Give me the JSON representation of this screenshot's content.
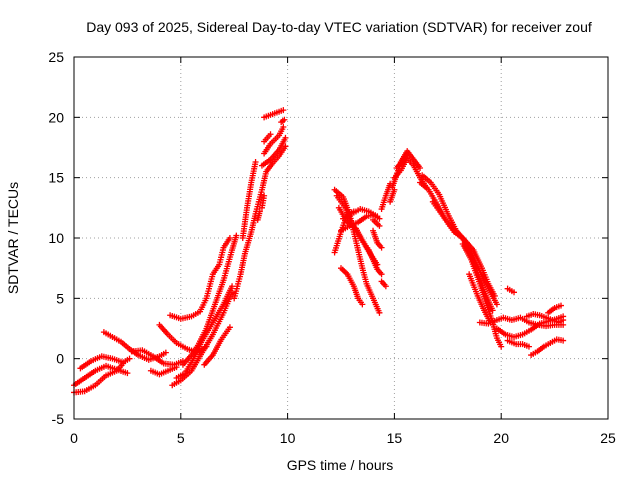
{
  "chart_data": {
    "type": "scatter",
    "title": "Day 093 of 2025, Sidereal Day-to-day VTEC variation (SDTVAR) for receiver zouf",
    "xlabel": "GPS time / hours",
    "ylabel": "SDTVAR / TECUs",
    "xlim": [
      0,
      25
    ],
    "ylim": [
      -5,
      25
    ],
    "xticks": [
      "0",
      "5",
      "10",
      "15",
      "20",
      "25"
    ],
    "yticks": [
      "-5",
      "0",
      "5",
      "10",
      "15",
      "20",
      "25"
    ],
    "grid": true,
    "marker": "+",
    "series": [
      {
        "name": "SDTVAR",
        "color": "#ff0000",
        "tracks": [
          [
            [
              0.0,
              -2.2
            ],
            [
              0.5,
              -1.6
            ],
            [
              1.0,
              -1.0
            ],
            [
              1.5,
              -0.6
            ],
            [
              2.0,
              -0.9
            ],
            [
              2.5,
              -1.2
            ]
          ],
          [
            [
              0.0,
              -2.8
            ],
            [
              0.5,
              -2.7
            ],
            [
              1.0,
              -2.2
            ],
            [
              1.5,
              -1.4
            ],
            [
              2.0,
              -1.0
            ],
            [
              2.3,
              -0.4
            ]
          ],
          [
            [
              0.3,
              -0.8
            ],
            [
              0.8,
              -0.2
            ],
            [
              1.3,
              0.2
            ],
            [
              1.8,
              0.0
            ],
            [
              2.3,
              -0.3
            ],
            [
              2.6,
              0.0
            ]
          ],
          [
            [
              1.4,
              2.2
            ],
            [
              1.8,
              1.8
            ],
            [
              2.2,
              1.4
            ],
            [
              2.6,
              0.8
            ],
            [
              3.0,
              0.3
            ],
            [
              3.5,
              -0.1
            ],
            [
              4.0,
              0.2
            ],
            [
              4.3,
              0.5
            ]
          ],
          [
            [
              2.7,
              0.6
            ],
            [
              3.2,
              0.7
            ],
            [
              3.7,
              0.2
            ],
            [
              4.2,
              -0.4
            ],
            [
              4.7,
              -0.5
            ],
            [
              5.1,
              -0.2
            ]
          ],
          [
            [
              3.6,
              -1.0
            ],
            [
              4.0,
              -1.3
            ],
            [
              4.4,
              -1.0
            ],
            [
              4.8,
              -0.7
            ]
          ],
          [
            [
              4.0,
              2.8
            ],
            [
              4.4,
              2.0
            ],
            [
              4.8,
              1.3
            ],
            [
              5.3,
              0.8
            ],
            [
              5.8,
              0.5
            ],
            [
              6.2,
              1.0
            ]
          ],
          [
            [
              4.5,
              3.6
            ],
            [
              5.0,
              3.3
            ],
            [
              5.5,
              3.5
            ],
            [
              5.9,
              3.9
            ],
            [
              6.2,
              5.0
            ],
            [
              6.5,
              7.0
            ],
            [
              6.8,
              7.8
            ],
            [
              7.0,
              9.2
            ],
            [
              7.3,
              10.0
            ]
          ],
          [
            [
              4.6,
              -2.2
            ],
            [
              5.0,
              -1.8
            ],
            [
              5.5,
              -1.0
            ],
            [
              6.0,
              0.5
            ],
            [
              6.5,
              2.0
            ],
            [
              7.0,
              3.8
            ],
            [
              7.4,
              5.5
            ]
          ],
          [
            [
              4.8,
              -1.6
            ],
            [
              5.2,
              -1.2
            ],
            [
              5.6,
              0.0
            ],
            [
              6.0,
              1.5
            ],
            [
              6.5,
              3.0
            ],
            [
              7.0,
              4.5
            ],
            [
              7.4,
              6.0
            ]
          ],
          [
            [
              5.1,
              -0.5
            ],
            [
              5.5,
              0.3
            ],
            [
              5.8,
              1.1
            ],
            [
              6.2,
              2.5
            ],
            [
              6.6,
              4.5
            ],
            [
              7.0,
              6.5
            ],
            [
              7.4,
              9.0
            ],
            [
              7.6,
              10.2
            ]
          ],
          [
            [
              6.1,
              -0.5
            ],
            [
              6.5,
              0.3
            ],
            [
              6.9,
              1.6
            ],
            [
              7.3,
              2.6
            ]
          ],
          [
            [
              7.5,
              5.0
            ],
            [
              7.8,
              7.0
            ],
            [
              8.0,
              8.7
            ],
            [
              8.3,
              10.5
            ],
            [
              8.5,
              12.0
            ],
            [
              8.8,
              14.0
            ],
            [
              9.0,
              15.5
            ],
            [
              9.3,
              16.2
            ],
            [
              9.6,
              16.8
            ],
            [
              9.9,
              17.6
            ]
          ],
          [
            [
              7.9,
              10.0
            ],
            [
              8.1,
              12.5
            ],
            [
              8.3,
              14.6
            ],
            [
              8.5,
              16.3
            ]
          ],
          [
            [
              8.8,
              16.0
            ],
            [
              9.2,
              16.5
            ],
            [
              9.6,
              17.3
            ],
            [
              9.9,
              18.3
            ]
          ],
          [
            [
              8.9,
              17.0
            ],
            [
              9.2,
              17.8
            ],
            [
              9.6,
              18.5
            ],
            [
              9.8,
              19.2
            ]
          ],
          [
            [
              8.6,
              11.5
            ],
            [
              8.7,
              12.2
            ]
          ],
          [
            [
              8.8,
              12.5
            ],
            [
              8.9,
              13.5
            ]
          ],
          [
            [
              8.9,
              18.0
            ],
            [
              9.2,
              18.6
            ]
          ],
          [
            [
              8.9,
              20.0
            ],
            [
              9.2,
              20.2
            ],
            [
              9.5,
              20.4
            ],
            [
              9.8,
              20.6
            ]
          ],
          [
            [
              9.7,
              19.6
            ],
            [
              9.85,
              19.8
            ]
          ],
          [
            [
              12.2,
              8.8
            ],
            [
              12.5,
              10.5
            ],
            [
              12.8,
              12.0
            ],
            [
              13.1,
              12.2
            ]
          ],
          [
            [
              12.2,
              14.0
            ],
            [
              12.6,
              13.4
            ],
            [
              12.9,
              12.0
            ],
            [
              13.1,
              10.5
            ],
            [
              13.3,
              9.0
            ],
            [
              13.5,
              7.5
            ],
            [
              13.7,
              6.2
            ],
            [
              14.0,
              5.0
            ],
            [
              14.3,
              3.8
            ]
          ],
          [
            [
              12.3,
              13.5
            ],
            [
              12.7,
              12.5
            ],
            [
              13.0,
              11.2
            ],
            [
              13.4,
              10.0
            ],
            [
              13.8,
              9.0
            ],
            [
              14.0,
              8.2
            ],
            [
              14.2,
              7.4
            ],
            [
              14.4,
              7.0
            ]
          ],
          [
            [
              12.4,
              12.5
            ],
            [
              12.8,
              11.3
            ],
            [
              13.2,
              10.8
            ],
            [
              13.6,
              9.5
            ],
            [
              13.9,
              8.6
            ],
            [
              14.2,
              7.8
            ]
          ],
          [
            [
              12.5,
              10.6
            ],
            [
              12.9,
              11.0
            ],
            [
              13.3,
              11.3
            ],
            [
              13.7,
              11.8
            ],
            [
              14.0,
              11.9
            ],
            [
              14.3,
              11.6
            ]
          ],
          [
            [
              12.6,
              11.6
            ],
            [
              13.0,
              12.0
            ],
            [
              13.4,
              12.4
            ],
            [
              13.8,
              12.2
            ],
            [
              14.2,
              11.8
            ]
          ],
          [
            [
              12.5,
              7.5
            ],
            [
              12.8,
              7.0
            ],
            [
              13.1,
              6.0
            ],
            [
              13.3,
              5.0
            ],
            [
              13.5,
              4.5
            ]
          ],
          [
            [
              14.0,
              10.6
            ],
            [
              14.2,
              9.6
            ],
            [
              14.4,
              9.2
            ]
          ],
          [
            [
              14.0,
              11.5
            ],
            [
              14.3,
              11.0
            ]
          ],
          [
            [
              14.4,
              6.4
            ],
            [
              14.6,
              6.0
            ]
          ],
          [
            [
              14.4,
              12.4
            ],
            [
              14.6,
              13.5
            ],
            [
              14.8,
              14.5
            ]
          ],
          [
            [
              14.8,
              13.0
            ],
            [
              15.0,
              14.0
            ]
          ],
          [
            [
              14.9,
              14.2
            ],
            [
              15.1,
              15.2
            ],
            [
              15.3,
              16.3
            ],
            [
              15.6,
              17.2
            ],
            [
              15.9,
              16.5
            ],
            [
              16.2,
              15.8
            ]
          ],
          [
            [
              15.0,
              15.0
            ],
            [
              15.3,
              15.6
            ],
            [
              15.6,
              16.6
            ],
            [
              15.9,
              16.0
            ],
            [
              16.2,
              15.0
            ],
            [
              16.5,
              14.2
            ]
          ],
          [
            [
              15.1,
              15.8
            ],
            [
              15.3,
              16.2
            ],
            [
              15.6,
              16.8
            ]
          ],
          [
            [
              16.2,
              14.6
            ],
            [
              16.6,
              14.0
            ],
            [
              17.0,
              12.8
            ],
            [
              17.4,
              11.5
            ],
            [
              17.8,
              10.5
            ],
            [
              18.2,
              10.0
            ],
            [
              18.6,
              8.5
            ],
            [
              19.0,
              6.6
            ],
            [
              19.3,
              5.2
            ],
            [
              19.6,
              4.0
            ]
          ],
          [
            [
              16.3,
              15.2
            ],
            [
              16.7,
              14.6
            ],
            [
              17.1,
              13.6
            ],
            [
              17.5,
              12.0
            ],
            [
              17.9,
              10.6
            ],
            [
              18.3,
              9.8
            ],
            [
              18.7,
              9.0
            ],
            [
              19.1,
              7.5
            ],
            [
              19.4,
              6.2
            ],
            [
              19.7,
              5.2
            ]
          ],
          [
            [
              16.8,
              13.0
            ],
            [
              17.2,
              12.0
            ],
            [
              17.6,
              11.0
            ],
            [
              18.0,
              10.3
            ],
            [
              18.4,
              9.6
            ],
            [
              18.8,
              8.0
            ],
            [
              19.2,
              6.5
            ],
            [
              19.5,
              5.5
            ],
            [
              19.8,
              4.5
            ]
          ],
          [
            [
              18.2,
              9.5
            ],
            [
              18.6,
              8.2
            ],
            [
              19.0,
              6.2
            ],
            [
              19.3,
              4.6
            ],
            [
              19.6,
              3.0
            ],
            [
              19.8,
              1.7
            ],
            [
              20.0,
              1.0
            ]
          ],
          [
            [
              18.5,
              7.0
            ],
            [
              18.9,
              5.2
            ],
            [
              19.2,
              4.0
            ],
            [
              19.5,
              3.0
            ]
          ],
          [
            [
              19.0,
              3.0
            ],
            [
              19.4,
              2.9
            ],
            [
              19.8,
              3.2
            ],
            [
              20.1,
              3.4
            ],
            [
              20.5,
              3.2
            ],
            [
              20.9,
              3.4
            ],
            [
              21.3,
              3.0
            ],
            [
              21.7,
              2.8
            ],
            [
              22.1,
              2.7
            ],
            [
              22.5,
              2.8
            ],
            [
              22.9,
              2.8
            ]
          ],
          [
            [
              19.8,
              2.5
            ],
            [
              20.2,
              2.0
            ],
            [
              20.6,
              1.8
            ],
            [
              21.0,
              2.0
            ],
            [
              21.4,
              2.4
            ],
            [
              21.8,
              2.9
            ],
            [
              22.2,
              3.1
            ],
            [
              22.6,
              3.3
            ],
            [
              22.9,
              3.5
            ]
          ],
          [
            [
              20.3,
              5.8
            ],
            [
              20.6,
              5.5
            ]
          ],
          [
            [
              20.3,
              1.5
            ],
            [
              20.7,
              1.2
            ],
            [
              21.0,
              1.2
            ],
            [
              21.3,
              1.0
            ]
          ],
          [
            [
              21.2,
              3.5
            ],
            [
              21.5,
              3.7
            ],
            [
              21.8,
              3.6
            ],
            [
              22.1,
              3.4
            ],
            [
              22.4,
              3.2
            ],
            [
              22.7,
              3.0
            ],
            [
              22.9,
              3.2
            ]
          ],
          [
            [
              21.4,
              0.3
            ],
            [
              21.7,
              0.6
            ],
            [
              22.0,
              1.0
            ],
            [
              22.3,
              1.3
            ],
            [
              22.6,
              1.6
            ],
            [
              22.9,
              1.5
            ]
          ],
          [
            [
              22.2,
              3.8
            ],
            [
              22.5,
              4.2
            ],
            [
              22.8,
              4.4
            ]
          ]
        ]
      }
    ]
  }
}
